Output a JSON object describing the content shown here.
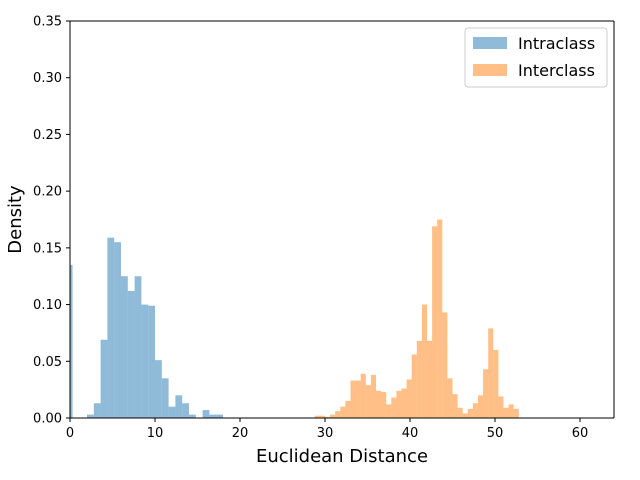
{
  "chart_data": {
    "type": "bar",
    "subtype": "histogram",
    "xlabel": "Euclidean Distance",
    "ylabel": "Density",
    "xlim": [
      0,
      64
    ],
    "ylim": [
      0,
      0.35
    ],
    "xticks": [
      0,
      10,
      20,
      30,
      40,
      50,
      60
    ],
    "xtick_labels": [
      "0",
      "10",
      "20",
      "30",
      "40",
      "50",
      "60"
    ],
    "yticks": [
      0.0,
      0.05,
      0.1,
      0.15,
      0.2,
      0.25,
      0.3,
      0.35
    ],
    "ytick_labels": [
      "0.00",
      "0.05",
      "0.10",
      "0.15",
      "0.20",
      "0.25",
      "0.30",
      "0.35"
    ],
    "grid": false,
    "legend_position": "top-right",
    "series": [
      {
        "name": "Intraclass",
        "color": "#1f77b4",
        "alpha": 0.5,
        "bins": [
          [
            0.0,
            0.3,
            0.135
          ],
          [
            2.0,
            2.8,
            0.003
          ],
          [
            2.8,
            3.6,
            0.013
          ],
          [
            3.6,
            4.4,
            0.069
          ],
          [
            4.4,
            5.2,
            0.159
          ],
          [
            5.2,
            6.0,
            0.155
          ],
          [
            6.0,
            6.8,
            0.125
          ],
          [
            6.8,
            7.6,
            0.112
          ],
          [
            7.6,
            8.4,
            0.125
          ],
          [
            8.4,
            9.2,
            0.1
          ],
          [
            9.2,
            10.0,
            0.099
          ],
          [
            10.0,
            10.8,
            0.051
          ],
          [
            10.8,
            11.6,
            0.035
          ],
          [
            11.6,
            12.4,
            0.01
          ],
          [
            12.4,
            13.2,
            0.02
          ],
          [
            13.2,
            14.0,
            0.013
          ],
          [
            14.0,
            14.8,
            0.003
          ],
          [
            15.6,
            16.4,
            0.007
          ],
          [
            16.4,
            17.2,
            0.003
          ],
          [
            17.2,
            18.0,
            0.003
          ]
        ]
      },
      {
        "name": "Interclass",
        "color": "#ff7f0e",
        "alpha": 0.5,
        "bins": [
          [
            28.8,
            29.4,
            0.002
          ],
          [
            29.4,
            30.0,
            0.002
          ],
          [
            30.0,
            30.6,
            0.001
          ],
          [
            30.6,
            31.2,
            0.003
          ],
          [
            31.2,
            31.8,
            0.006
          ],
          [
            31.8,
            32.4,
            0.01
          ],
          [
            32.4,
            33.0,
            0.015
          ],
          [
            33.0,
            33.6,
            0.033
          ],
          [
            33.6,
            34.2,
            0.033
          ],
          [
            34.2,
            34.8,
            0.039
          ],
          [
            34.8,
            35.4,
            0.029
          ],
          [
            35.4,
            36.0,
            0.038
          ],
          [
            36.0,
            36.6,
            0.024
          ],
          [
            36.6,
            37.2,
            0.023
          ],
          [
            37.2,
            37.8,
            0.012
          ],
          [
            37.8,
            38.4,
            0.018
          ],
          [
            38.4,
            39.0,
            0.024
          ],
          [
            39.0,
            39.6,
            0.026
          ],
          [
            39.6,
            40.2,
            0.034
          ],
          [
            40.2,
            40.8,
            0.056
          ],
          [
            40.8,
            41.4,
            0.068
          ],
          [
            41.4,
            42.0,
            0.1
          ],
          [
            42.0,
            42.6,
            0.068
          ],
          [
            42.6,
            43.2,
            0.169
          ],
          [
            43.2,
            43.8,
            0.175
          ],
          [
            43.8,
            44.4,
            0.093
          ],
          [
            44.4,
            45.0,
            0.035
          ],
          [
            45.0,
            45.6,
            0.021
          ],
          [
            45.6,
            46.2,
            0.009
          ],
          [
            46.2,
            46.8,
            0.004
          ],
          [
            46.8,
            47.4,
            0.008
          ],
          [
            47.4,
            48.0,
            0.013
          ],
          [
            48.0,
            48.6,
            0.02
          ],
          [
            48.6,
            49.2,
            0.043
          ],
          [
            49.2,
            49.8,
            0.079
          ],
          [
            49.8,
            50.4,
            0.06
          ],
          [
            50.4,
            51.0,
            0.019
          ],
          [
            51.0,
            51.6,
            0.009
          ],
          [
            51.6,
            52.2,
            0.012
          ],
          [
            52.2,
            52.8,
            0.008
          ]
        ]
      }
    ]
  }
}
